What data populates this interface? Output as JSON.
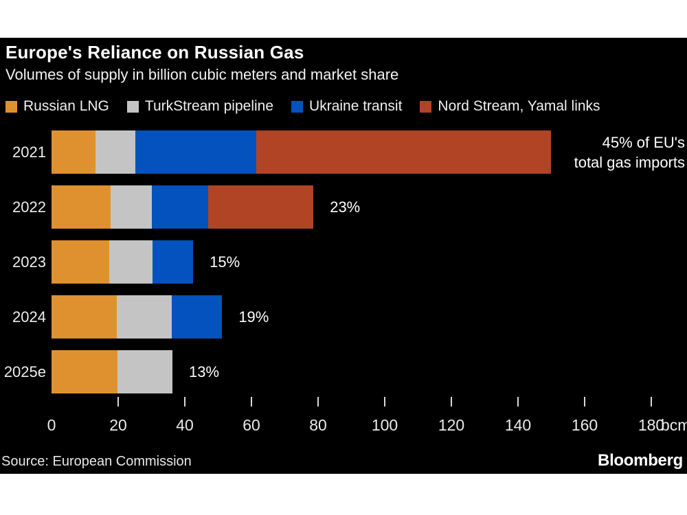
{
  "header": {
    "title": "Europe's Reliance on Russian Gas",
    "subtitle": "Volumes of supply in billion cubic meters and market share"
  },
  "chart_data": {
    "type": "bar",
    "orientation": "horizontal",
    "title": "Europe's Reliance on Russian Gas",
    "subtitle": "Volumes of supply in billion cubic meters and market share",
    "unit": "bcm",
    "categories": [
      "2021",
      "2022",
      "2023",
      "2024",
      "2025e"
    ],
    "series": [
      {
        "name": "Russian LNG",
        "color": "#E0912F",
        "values": [
          13.2,
          17.7,
          17.3,
          19.6,
          19.8
        ]
      },
      {
        "name": "TurkStream pipeline",
        "color": "#C4C4C4",
        "values": [
          12.0,
          12.4,
          13.0,
          16.5,
          16.5
        ]
      },
      {
        "name": "Ukraine transit",
        "color": "#0452BD",
        "values": [
          36.3,
          16.9,
          12.2,
          15.1,
          0
        ]
      },
      {
        "name": "Nord Stream, Yamal links",
        "color": "#B04424",
        "values": [
          88.5,
          31.6,
          0,
          0,
          0
        ]
      }
    ],
    "totals_bcm": [
      150,
      78.6,
      42.5,
      51.2,
      36.3
    ],
    "value_labels": [
      "45% of EU's total gas imports",
      "23%",
      "15%",
      "19%",
      "13%"
    ],
    "annotation_lines": [
      "45% of EU's",
      "total gas imports"
    ],
    "x_ticks": [
      0,
      20,
      40,
      60,
      80,
      100,
      120,
      140,
      160,
      180
    ],
    "xlim": [
      0,
      190
    ],
    "legend_position": "top",
    "grid": false
  },
  "footer": {
    "source": "Source: European Commission",
    "brand": "Bloomberg"
  }
}
